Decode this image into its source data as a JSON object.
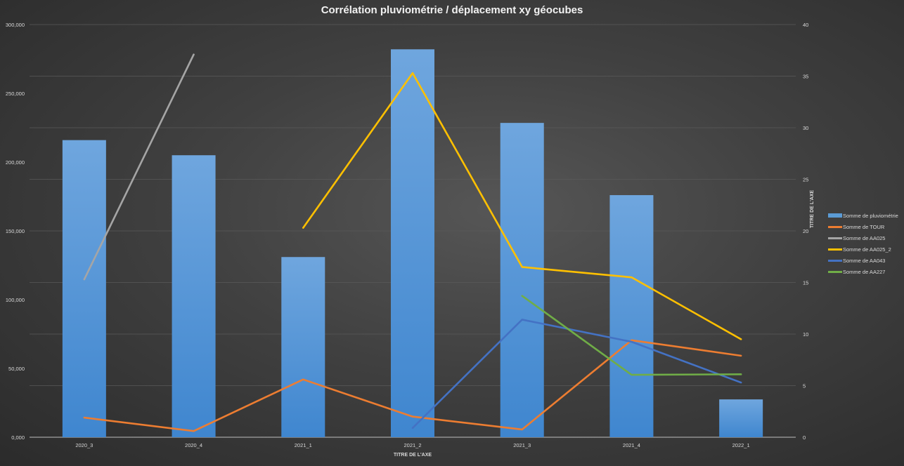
{
  "chart_data": {
    "type": "bar+line",
    "title": "Corrélation pluviométrie / déplacement xy géocubes",
    "xlabel": "TITRE DE L'AXE",
    "ylabel_right": "TITRE DE L'AXE",
    "categories": [
      "2020_3",
      "2020_4",
      "2021_1",
      "2021_2",
      "2021_3",
      "2021_4",
      "2022_1"
    ],
    "y_left": {
      "range": [
        0,
        300000
      ],
      "ticks": [
        "0,000",
        "50,000",
        "100,000",
        "150,000",
        "200,000",
        "250,000",
        "300,000"
      ],
      "tick_values": [
        0,
        50000,
        100000,
        150000,
        200000,
        250000,
        300000
      ]
    },
    "y_right": {
      "range": [
        0,
        40
      ],
      "ticks": [
        "0",
        "5",
        "10",
        "15",
        "20",
        "25",
        "30",
        "35",
        "40"
      ],
      "tick_values": [
        0,
        5,
        10,
        15,
        20,
        25,
        30,
        35,
        40
      ]
    },
    "grid": true,
    "legend_position": "right",
    "series": [
      {
        "name": "Somme de pluviométrie",
        "type": "bar",
        "axis": "left",
        "color": "#5b9bd5",
        "values": [
          216000,
          205000,
          131000,
          282000,
          228500,
          176000,
          27500
        ]
      },
      {
        "name": "Somme de TOUR",
        "type": "line",
        "axis": "right",
        "color": "#ed7d31",
        "values": [
          1.9,
          0.6,
          5.6,
          2.0,
          0.75,
          9.4,
          7.9
        ]
      },
      {
        "name": "Somme de AA025",
        "type": "line",
        "axis": "right",
        "color": "#a5a5a5",
        "values": [
          15.3,
          37.1,
          null,
          null,
          null,
          null,
          null
        ]
      },
      {
        "name": "Somme de AA025_2",
        "type": "line",
        "axis": "right",
        "color": "#ffc000",
        "values": [
          null,
          null,
          20.3,
          35.3,
          16.5,
          15.5,
          9.5
        ]
      },
      {
        "name": "Somme de AA043",
        "type": "line",
        "axis": "right",
        "color": "#4472c4",
        "values": [
          null,
          null,
          null,
          0.9,
          11.4,
          9.25,
          5.3
        ]
      },
      {
        "name": "Somme de AA227",
        "type": "line",
        "axis": "right",
        "color": "#70ad47",
        "values": [
          null,
          null,
          null,
          null,
          13.7,
          6.05,
          6.1
        ]
      }
    ]
  }
}
